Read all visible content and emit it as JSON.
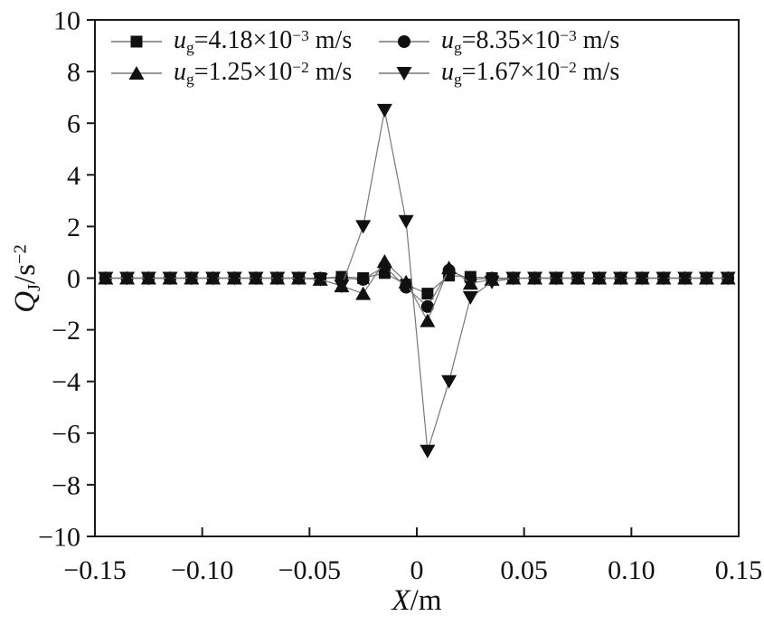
{
  "figure": {
    "background": "#ffffff",
    "marker_color": "#111111",
    "line_color": "#777777",
    "axis_color": "#1a1a1a"
  },
  "axes": {
    "x_title": {
      "var": "X",
      "rest": "/m"
    },
    "y_title": {
      "var": "Q",
      "sub": "J",
      "rest": "/s",
      "exp": "−2"
    },
    "x_ticks": [
      {
        "v": -0.15,
        "label": "−0.15"
      },
      {
        "v": -0.1,
        "label": "−0.10"
      },
      {
        "v": -0.05,
        "label": "−0.05"
      },
      {
        "v": 0,
        "label": "0"
      },
      {
        "v": 0.05,
        "label": "0.05"
      },
      {
        "v": 0.1,
        "label": "0.10"
      },
      {
        "v": 0.15,
        "label": "0.15"
      }
    ],
    "y_ticks": [
      {
        "v": 10,
        "label": "10"
      },
      {
        "v": 8,
        "label": "8"
      },
      {
        "v": 6,
        "label": "6"
      },
      {
        "v": 4,
        "label": "4"
      },
      {
        "v": 2,
        "label": "2"
      },
      {
        "v": 0,
        "label": "0"
      },
      {
        "v": -2,
        "label": "−2"
      },
      {
        "v": -4,
        "label": "−4"
      },
      {
        "v": -6,
        "label": "−6"
      },
      {
        "v": -8,
        "label": "−8"
      },
      {
        "v": -10,
        "label": "−10"
      }
    ]
  },
  "chart_data": {
    "type": "line",
    "title": "",
    "xlabel": "X/m",
    "ylabel": "Q_J/s^−2",
    "xlim": [
      -0.15,
      0.15
    ],
    "ylim": [
      -10,
      10
    ],
    "grid": false,
    "legend_position": "top-left-inside",
    "x": [
      -0.145,
      -0.135,
      -0.125,
      -0.115,
      -0.105,
      -0.095,
      -0.085,
      -0.075,
      -0.065,
      -0.055,
      -0.045,
      -0.035,
      -0.025,
      -0.015,
      -0.005,
      0.005,
      0.015,
      0.025,
      0.035,
      0.045,
      0.055,
      0.065,
      0.075,
      0.085,
      0.095,
      0.105,
      0.115,
      0.125,
      0.135,
      0.145
    ],
    "series": [
      {
        "name": "ug-4.18e-3",
        "marker": "square",
        "legend": {
          "var": "u",
          "sub": "g",
          "value": "=4.18×10",
          "exp": "−3",
          "unit": " m/s"
        },
        "values": [
          0,
          0,
          0,
          0,
          0,
          0,
          0,
          0,
          0,
          0,
          0,
          0.05,
          0,
          0.2,
          -0.25,
          -0.6,
          0.1,
          0.05,
          0,
          0,
          0,
          0,
          0,
          0,
          0,
          0,
          0,
          0,
          0,
          0
        ]
      },
      {
        "name": "ug-8.35e-3",
        "marker": "circle",
        "legend": {
          "var": "u",
          "sub": "g",
          "value": "=8.35×10",
          "exp": "−3",
          "unit": " m/s"
        },
        "values": [
          0,
          0,
          0,
          0,
          0,
          0,
          0,
          0,
          0,
          0,
          0,
          0,
          -0.05,
          0.45,
          -0.35,
          -1.1,
          0.3,
          -0.05,
          0,
          0,
          0,
          0,
          0,
          0,
          0,
          0,
          0,
          0,
          0,
          0
        ]
      },
      {
        "name": "ug-1.25e-2",
        "marker": "triangle-up",
        "legend": {
          "var": "u",
          "sub": "g",
          "value": "=1.25×10",
          "exp": "−2",
          "unit": " m/s"
        },
        "values": [
          0,
          0,
          0,
          0,
          0,
          0,
          0,
          0,
          0,
          0,
          -0.05,
          -0.3,
          -0.6,
          0.65,
          -0.15,
          -1.65,
          0.4,
          -0.2,
          -0.05,
          0,
          0,
          0,
          0,
          0,
          0,
          0,
          0,
          0,
          0,
          0
        ]
      },
      {
        "name": "ug-1.67e-2",
        "marker": "triangle-down",
        "legend": {
          "var": "u",
          "sub": "g",
          "value": "=1.67×10",
          "exp": "−2",
          "unit": " m/s"
        },
        "values": [
          0,
          0,
          0,
          0,
          0,
          0,
          0,
          0,
          0,
          0,
          -0.05,
          -0.3,
          2.0,
          6.5,
          2.2,
          -6.7,
          -4.0,
          -0.75,
          -0.15,
          0,
          0,
          0,
          0,
          0,
          0,
          0,
          0,
          0,
          0,
          0
        ]
      }
    ]
  }
}
